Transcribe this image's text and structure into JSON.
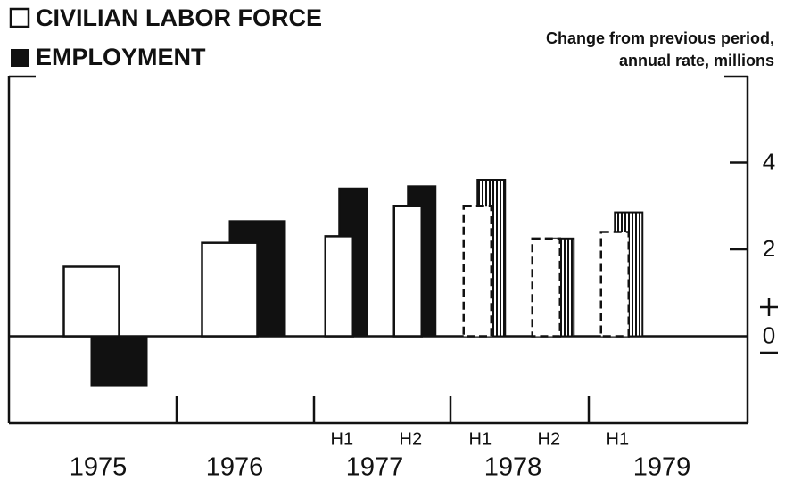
{
  "chart_data": {
    "type": "bar",
    "y_label": [
      "Change from previous period,",
      "annual rate, millions"
    ],
    "categories": [
      null,
      null,
      "H1",
      "H2",
      "H1",
      "H2",
      "H1"
    ],
    "years": [
      "1975",
      "1976",
      "1977",
      "1978",
      "1979"
    ],
    "series": [
      {
        "name": "CIVILIAN LABOR FORCE",
        "color": "#ffffff",
        "values": [
          1.6,
          2.15,
          2.3,
          3.0,
          3.0,
          2.25,
          2.4
        ]
      },
      {
        "name": "EMPLOYMENT",
        "color": "#111111",
        "values": [
          -1.15,
          2.65,
          3.4,
          3.45,
          3.6,
          2.25,
          2.85
        ]
      }
    ],
    "projected": [
      false,
      false,
      false,
      false,
      true,
      true,
      true
    ],
    "ylim": [
      -2,
      6
    ],
    "yticks": [
      0,
      2,
      4
    ]
  }
}
